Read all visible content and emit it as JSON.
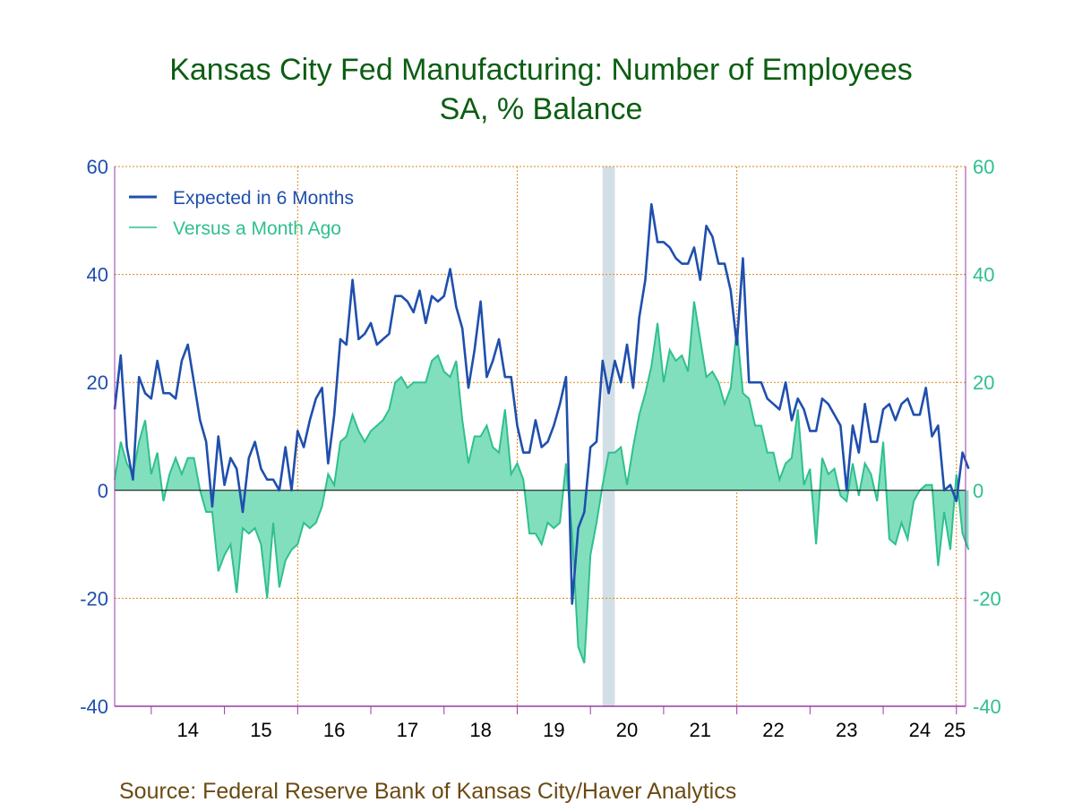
{
  "chart_data": {
    "type": "line",
    "title": "Kansas City Fed Manufacturing: Number of Employees",
    "subtitle": "SA, % Balance",
    "ylim": [
      -40,
      60
    ],
    "yticks": [
      "60",
      "40",
      "20",
      "0",
      "-20",
      "-40"
    ],
    "year_labels": [
      "14",
      "15",
      "16",
      "17",
      "18",
      "19",
      "20",
      "21",
      "22",
      "23",
      "24",
      "25"
    ],
    "x_start": "2013-07",
    "recession": [
      "2020-03",
      "2020-04"
    ],
    "grid": true,
    "legend_position": "top-left",
    "series": [
      {
        "name": "Expected in 6 Months",
        "color": "#1f4fad",
        "style": "line",
        "values": [
          15,
          25,
          8,
          2,
          21,
          18,
          17,
          24,
          18,
          18,
          17,
          24,
          27,
          20,
          13,
          9,
          -3,
          10,
          1,
          6,
          4,
          -4,
          6,
          9,
          4,
          2,
          2,
          0,
          8,
          0,
          11,
          8,
          13,
          17,
          19,
          5,
          14,
          28,
          27,
          39,
          28,
          29,
          31,
          27,
          28,
          29,
          36,
          36,
          35,
          33,
          37,
          31,
          36,
          35,
          36,
          41,
          34,
          30,
          19,
          26,
          35,
          21,
          24,
          28,
          21,
          21,
          12,
          7,
          7,
          13,
          8,
          9,
          12,
          16,
          21,
          -21,
          -7,
          -4,
          8,
          9,
          24,
          18,
          24,
          20,
          27,
          19,
          32,
          39,
          53,
          46,
          46,
          45,
          43,
          42,
          42,
          45,
          39,
          49,
          47,
          42,
          42,
          37,
          27,
          43,
          20,
          20,
          20,
          17,
          16,
          15,
          20,
          13,
          17,
          15,
          11,
          11,
          17,
          16,
          14,
          12,
          0,
          12,
          7,
          16,
          9,
          9,
          15,
          16,
          13,
          16,
          17,
          14,
          14,
          19,
          10,
          12,
          0,
          1,
          -2,
          7,
          4
        ]
      },
      {
        "name": "Versus a Month Ago",
        "color": "#2fc08d",
        "fill": "#82dfbe",
        "style": "area",
        "values": [
          2,
          9,
          5,
          3,
          9,
          13,
          3,
          7,
          -2,
          3,
          6,
          3,
          6,
          6,
          0,
          -4,
          -4,
          -15,
          -12,
          -10,
          -19,
          -7,
          -8,
          -7,
          -10,
          -20,
          -6,
          -18,
          -13,
          -11,
          -10,
          -6,
          -7,
          -6,
          -3,
          3,
          1,
          9,
          10,
          14,
          11,
          9,
          11,
          12,
          13,
          15,
          20,
          21,
          19,
          20,
          20,
          20,
          24,
          25,
          22,
          21,
          24,
          13,
          5,
          10,
          10,
          12,
          8,
          7,
          15,
          3,
          5,
          2,
          -8,
          -8,
          -10,
          -6,
          -7,
          -6,
          5,
          -8,
          -29,
          -32,
          -12,
          -6,
          1,
          7,
          7,
          8,
          1,
          8,
          14,
          18,
          23,
          31,
          20,
          26,
          24,
          25,
          22,
          35,
          28,
          21,
          22,
          20,
          16,
          19,
          30,
          18,
          17,
          12,
          12,
          7,
          7,
          2,
          5,
          6,
          15,
          1,
          4,
          -10,
          6,
          3,
          4,
          -1,
          -2,
          5,
          -1,
          5,
          3,
          -2,
          9,
          -9,
          -10,
          -6,
          -9,
          -2,
          0,
          1,
          1,
          -14,
          -4,
          -11,
          3,
          -8,
          -11
        ]
      }
    ]
  },
  "source": "Source:  Federal Reserve Bank of Kansas City/Haver Analytics"
}
